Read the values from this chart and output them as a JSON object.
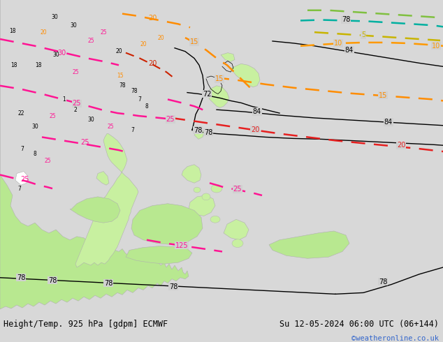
{
  "title_left": "Height/Temp. 925 hPa [gdpm] ECMWF",
  "title_right": "Su 12-05-2024 06:00 UTC (06+144)",
  "copyright": "©weatheronline.co.uk",
  "bg_color": "#d8d8d8",
  "map_bg": "#d0d0d0",
  "land_green_bright": "#b8e890",
  "land_green_light": "#c8f0a0",
  "ocean_color": "#d0d0d0",
  "footer_bg": "#c8c8c8",
  "text_color": "#000000",
  "copyright_color": "#3366cc",
  "font_size_footer": 8.5,
  "font_size_copyright": 7.5,
  "pink_color": "#ff1493",
  "orange_color": "#ff8c00",
  "red_color": "#e62020",
  "teal_color": "#00b0a0",
  "green_dashed": "#80c040",
  "yellow_dashed": "#c8b400"
}
